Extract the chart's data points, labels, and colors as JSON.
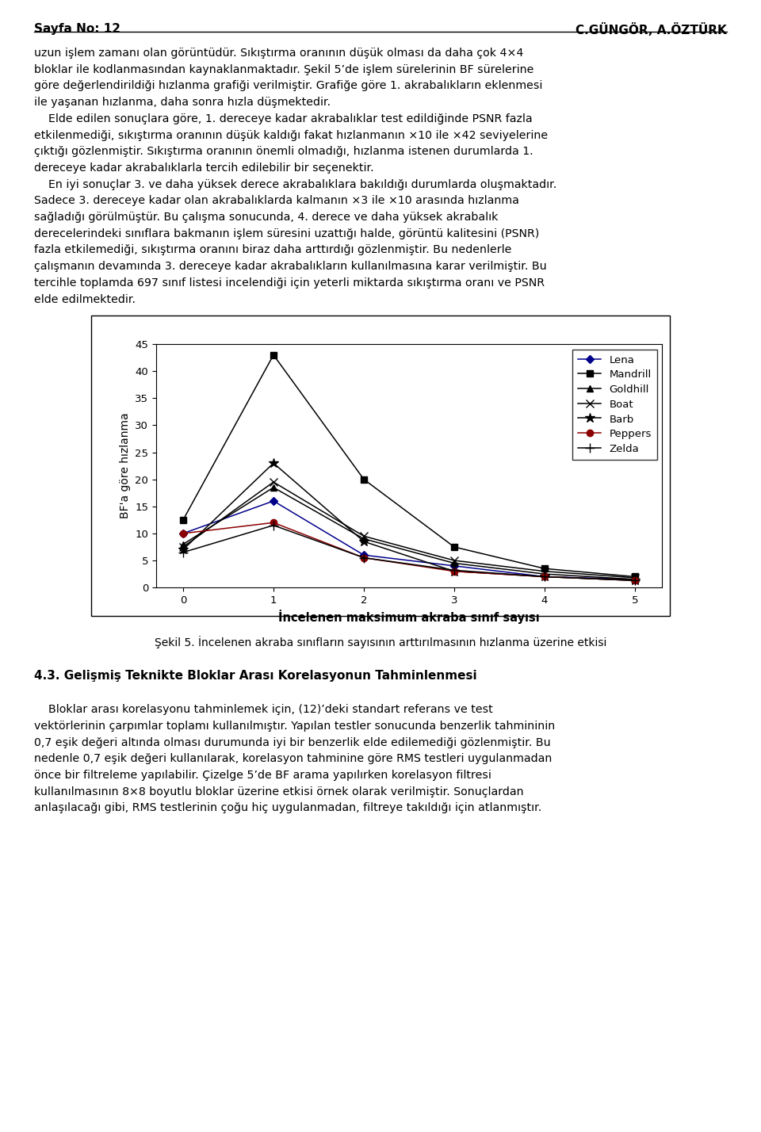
{
  "x": [
    0,
    1,
    2,
    3,
    4,
    5
  ],
  "series": {
    "Lena": [
      10.0,
      16.0,
      6.0,
      4.0,
      2.0,
      1.5
    ],
    "Mandrill": [
      12.5,
      43.0,
      20.0,
      7.5,
      3.5,
      2.0
    ],
    "Goldhill": [
      8.0,
      18.5,
      9.0,
      4.5,
      2.5,
      1.5
    ],
    "Boat": [
      7.5,
      19.5,
      9.5,
      5.0,
      3.0,
      1.8
    ],
    "Barb": [
      7.0,
      23.0,
      8.5,
      3.0,
      2.0,
      1.3
    ],
    "Peppers": [
      10.0,
      12.0,
      5.5,
      3.0,
      2.0,
      1.3
    ],
    "Zelda": [
      6.5,
      11.5,
      5.5,
      3.2,
      2.0,
      1.3
    ]
  },
  "colors": {
    "Lena": "#00008B",
    "Mandrill": "#000000",
    "Goldhill": "#000000",
    "Boat": "#000000",
    "Barb": "#000000",
    "Peppers": "#8B0000",
    "Zelda": "#000000"
  },
  "markers": {
    "Lena": "D",
    "Mandrill": "s",
    "Goldhill": "^",
    "Boat": "x",
    "Barb": "*",
    "Peppers": "o",
    "Zelda": "+"
  },
  "markersizes": {
    "Lena": 5,
    "Mandrill": 6,
    "Goldhill": 6,
    "Boat": 7,
    "Barb": 9,
    "Peppers": 6,
    "Zelda": 8
  },
  "ylabel": "BF'a göre hızlanma",
  "xlabel": "İncelenen maksimum akraba sınıf sayısı",
  "ylim": [
    0,
    45
  ],
  "xlim": [
    -0.3,
    5.3
  ],
  "yticks": [
    0,
    5,
    10,
    15,
    20,
    25,
    30,
    35,
    40,
    45
  ],
  "xticks": [
    0,
    1,
    2,
    3,
    4,
    5
  ],
  "header_left": "Sayfa No: 12",
  "header_right": "C.GÜNGÖR, A.ÖZTÜRK",
  "text_above": [
    "uzun işlem zamanı olan görüntüdür. Sıkıştırma oranının düşük olması da daha çok 4×4",
    "bloklar ile kodlanmasından kaynaklanmaktadır. Şekil 5’de işlem sürelerinin BF sürelerine",
    "göre değerlendirildiği hızlanma grafiği verilmiştir. Grafiğe göre 1. akrabalıkların eklenmesi",
    "ile yaşanan hızlanma, daha sonra hızla düşmektedir.",
    "    Elde edilen sonuçlara göre, 1. dereceye kadar akrabalıklar test edildiğinde PSNR fazla",
    "etkilenmediği, sıkıştırma oranının düşük kaldığı fakat hızlanmanın ×10 ile ×42 seviyelerine",
    "çıktığı gözlenmiştir. Sıkıştırma oranının önemli olmadığı, hızlanma istenen durumlarda 1.",
    "dereceye kadar akrabalıklarla tercih edilebilir bir seçenektir.",
    "    En iyi sonuçlar 3. ve daha yüksek derece akrabalıklara bakıldığı durumlarda oluşmaktadır.",
    "Sadece 3. dereceye kadar olan akrabalıklarda kalmanın ×3 ile ×10 arasında hızlanma",
    "sağladığı görülmüştür. Bu çalışma sonucunda, 4. derece ve daha yüksek akrabalık",
    "derecelerindeki sınıflara bakmanın işlem süresini uzattığı halde, görüntü kalitesini (PSNR)",
    "fazla etkilemediği, sıkıştırma oranını biraz daha arttırdığı gözlenmiştir. Bu nedenlerle",
    "çalışmanın devamında 3. dereceye kadar akrabalıkların kullanılmasına karar verilmiştir. Bu",
    "tercihle toplamda 697 sınıf listesi incelendiği için yeterli miktarda sıkıştırma oranı ve PSNR",
    "elde edilmektedir."
  ],
  "caption": "Şekil 5. İncelenen akraba sınıfların sayısının arttırılmasının hızlanma üzerine etkisi",
  "section_heading": "4.3. Gelişmiş Teknikte Bloklar Arası Korelasyonun Tahminlenmesi",
  "text_below": [
    "    Bloklar arası korelasyonu tahminlemek için, (12)’deki standart referans ve test",
    "vektörlerinin çarpımlar toplamı kullanılmıştır. Yapılan testler sonucunda benzerlik tahmininin",
    "0,7 eşik değeri altında olması durumunda iyi bir benzerlik elde edilemediği gözlenmiştir. Bu",
    "nedenle 0,7 eşik değeri kullanılarak, korelasyon tahminine göre RMS testleri uygulanmadan",
    "önce bir filtreleme yapılabilir. Çizelge 5’de BF arama yapılırken korelasyon filtresi",
    "kullanılmasının 8×8 boyutlu bloklar üzerine etkisi örnek olarak verilmiştir. Sonuçlardan",
    "anlaşılacağı gibi, RMS testlerinin çoğu hiç uygulanmadan, filtreye takıldığı için atlanmıştır."
  ]
}
